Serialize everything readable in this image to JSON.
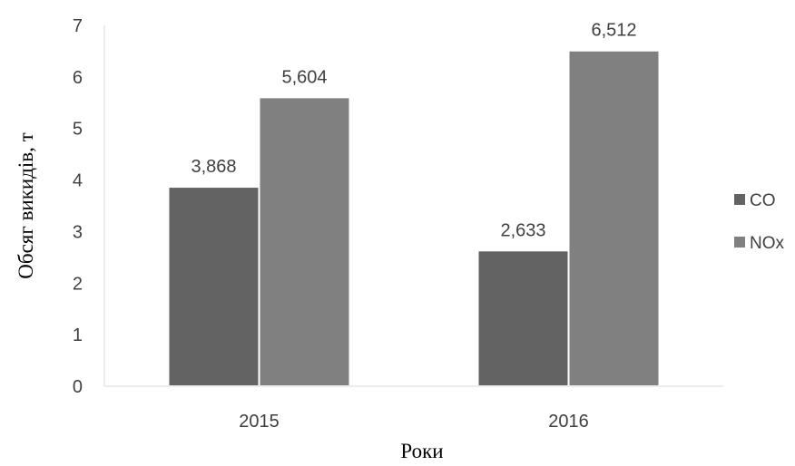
{
  "chart_data": {
    "type": "bar",
    "categories": [
      "2015",
      "2016"
    ],
    "series": [
      {
        "name": "CO",
        "values": [
          3.868,
          2.633
        ],
        "labels": [
          "3,868",
          "2,633"
        ],
        "color": "#636363"
      },
      {
        "name": "NOx",
        "values": [
          5.604,
          6.512
        ],
        "labels": [
          "5,604",
          "6,512"
        ],
        "color": "#808080"
      }
    ],
    "xlabel": "Роки",
    "ylabel": "Обсяг викидів, т",
    "ylim": [
      0,
      7
    ],
    "yticks": [
      "0",
      "1",
      "2",
      "3",
      "4",
      "5",
      "6",
      "7"
    ],
    "grid": false,
    "legend_position": "right"
  }
}
